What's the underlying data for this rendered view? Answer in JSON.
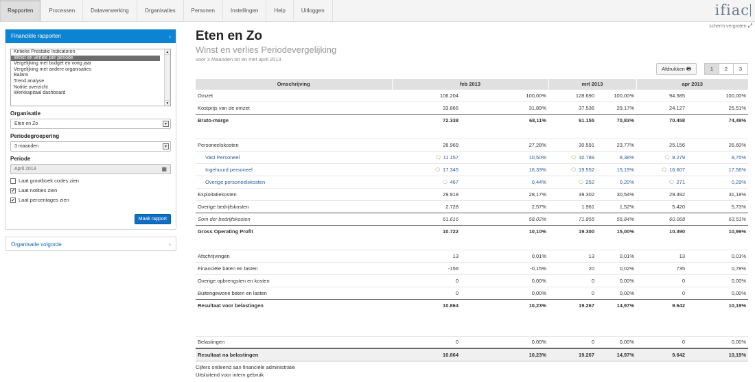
{
  "nav": [
    "Rapporten",
    "Processen",
    "Dataverwerking",
    "Organisaties",
    "Personen",
    "Instellingen",
    "Help",
    "Uitloggen"
  ],
  "logo": "ifiac",
  "enlarge": "scherm vergroten",
  "sidebar": {
    "panel_title": "Financiële rapporten",
    "reports": [
      "Kritieke Prestatie Indicatoren",
      "Winst en verlies per periode",
      "Vergelijking met budget en vorig jaar",
      "Vergelijking met andere organisaties",
      "Balans",
      "Trend analyse",
      "Notitie overzicht",
      "Werkkapitaal dashboard"
    ],
    "org_label": "Organisatie",
    "org_value": "Eten en Zo",
    "group_label": "Periodegroepering",
    "group_value": "3 maanden",
    "period_label": "Periode",
    "period_value": "April 2013",
    "chk1": "Laat grootboek codes zien",
    "chk2": "Laat notities zien",
    "chk3": "Laat percentages zien",
    "make_button": "Maak rapport",
    "order_label": "Organisatie volgorde"
  },
  "main": {
    "title": "Eten en Zo",
    "subtitle": "Winst en verlies Periodevergelijking",
    "period": "voor 3 Maanden tot en met april 2013",
    "print": "Afdrukken",
    "pages": [
      "1",
      "2",
      "3"
    ]
  },
  "table": {
    "headers": [
      "Omschrijving",
      "feb 2013",
      "mrt 2013",
      "apr 2013"
    ],
    "rows": [
      {
        "label": "Omzet",
        "v": [
          "106.204",
          "100,00%",
          "128.690",
          "100,00%",
          "94.585",
          "100,00%"
        ]
      },
      {
        "label": "Kostprijs van de omzet",
        "v": [
          "33.866",
          "31,89%",
          "37.536",
          "29,17%",
          "24.127",
          "25,51%"
        ]
      },
      {
        "label": "Bruto-marge",
        "v": [
          "72.338",
          "68,11%",
          "91.155",
          "70,83%",
          "70.458",
          "74,49%"
        ]
      },
      {
        "label": "Personeelskosten",
        "v": [
          "28.969",
          "27,28%",
          "30.591",
          "23,77%",
          "25.156",
          "26,60%"
        ]
      },
      {
        "label": "Vast Personeel",
        "v": [
          "11.157",
          "10,50%",
          "10.788",
          "8,38%",
          "8.279",
          "8,75%"
        ]
      },
      {
        "label": "Ingehuurd personeel",
        "v": [
          "17.345",
          "16,33%",
          "19.552",
          "15,19%",
          "16.607",
          "17,56%"
        ]
      },
      {
        "label": "Overige personeelskosten",
        "v": [
          "467",
          "0,44%",
          "252",
          "0,20%",
          "271",
          "0,29%"
        ]
      },
      {
        "label": "Exploitatiekosten",
        "v": [
          "29.918",
          "28,17%",
          "39.302",
          "30,54%",
          "29.492",
          "31,18%"
        ]
      },
      {
        "label": "Overige bedrijfskosten",
        "v": [
          "2.728",
          "2,57%",
          "1.961",
          "1,52%",
          "5.420",
          "5,73%"
        ]
      },
      {
        "label": "Som der bedrijfskosten",
        "v": [
          "61.616",
          "58,02%",
          "71.855",
          "55,84%",
          "60.068",
          "63,51%"
        ]
      },
      {
        "label": "Gross Operating Profit",
        "v": [
          "10.722",
          "10,10%",
          "19.300",
          "15,00%",
          "10.390",
          "10,99%"
        ]
      },
      {
        "label": "Afschrijvingen",
        "v": [
          "13",
          "0,01%",
          "13",
          "0,01%",
          "13",
          "0,01%"
        ]
      },
      {
        "label": "Financiële baten en lasten",
        "v": [
          "-156",
          "-0,15%",
          "20",
          "0,02%",
          "735",
          "0,78%"
        ]
      },
      {
        "label": "Overige opbrengsten en kosten",
        "v": [
          "0",
          "0,00%",
          "0",
          "0,00%",
          "0",
          "0,00%"
        ]
      },
      {
        "label": "Buitengewone baten en lasten",
        "v": [
          "0",
          "0,00%",
          "0",
          "0,00%",
          "0",
          "0,00%"
        ]
      },
      {
        "label": "Resultaat voor belastingen",
        "v": [
          "10.864",
          "10,23%",
          "19.267",
          "14,97%",
          "9.642",
          "10,19%"
        ]
      },
      {
        "label": "Belastingen",
        "v": [
          "0",
          "0,00%",
          "0",
          "0,00%",
          "0",
          "0,00%"
        ]
      },
      {
        "label": "Resultaat na belastingen",
        "v": [
          "10.864",
          "10,23%",
          "19.267",
          "14,97%",
          "9.642",
          "10,19%"
        ]
      }
    ]
  },
  "footer": [
    "Cijfers ontleend aan financiële administratie",
    "Uitsluitend voor intern gebruik"
  ]
}
